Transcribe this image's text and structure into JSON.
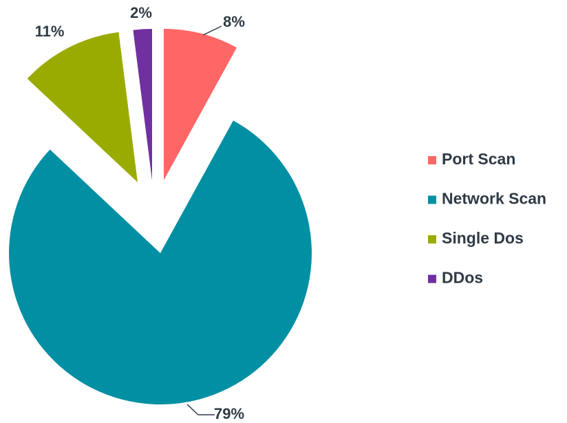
{
  "chart_data": {
    "type": "pie",
    "categories": [
      "Port Scan",
      "Network Scan",
      "Single Dos",
      "DDos"
    ],
    "values": [
      8,
      79,
      11,
      2
    ],
    "value_labels": [
      "8%",
      "79%",
      "11%",
      "2%"
    ],
    "colors": [
      "#ff6666",
      "#008fa3",
      "#9aab00",
      "#7030a0"
    ],
    "legend": "right"
  }
}
